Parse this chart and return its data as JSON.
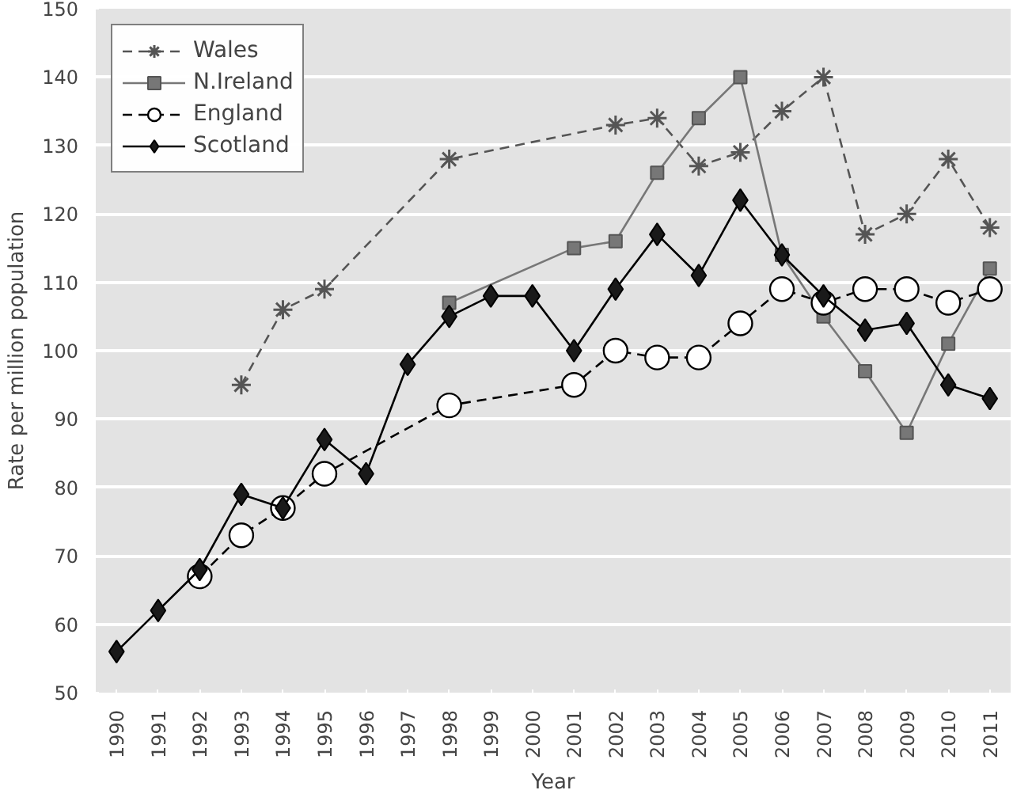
{
  "chart_data": {
    "type": "line",
    "xlabel": "Year",
    "ylabel": "Rate per million population",
    "categories": [
      "1990",
      "1991",
      "1992",
      "1993",
      "1994",
      "1995",
      "1996",
      "1997",
      "1998",
      "1999",
      "2000",
      "2001",
      "2002",
      "2003",
      "2004",
      "2005",
      "2006",
      "2007",
      "2008",
      "2009",
      "2010",
      "2011"
    ],
    "ylim": [
      50,
      150
    ],
    "yticks": [
      50,
      60,
      70,
      80,
      90,
      100,
      110,
      120,
      130,
      140,
      150
    ],
    "grid": "y",
    "legend": "top left",
    "series": [
      {
        "name": "Wales",
        "color": "#555555",
        "marker": "cross",
        "line_style": "dashed",
        "values": [
          null,
          null,
          null,
          95,
          106,
          109,
          null,
          null,
          128,
          null,
          null,
          null,
          133,
          134,
          127,
          129,
          135,
          140,
          117,
          120,
          128,
          118
        ]
      },
      {
        "name": "N.Ireland",
        "color": "#777777",
        "marker": "square",
        "line_style": "solid",
        "values": [
          null,
          null,
          null,
          null,
          null,
          null,
          null,
          null,
          107,
          null,
          null,
          115,
          116,
          126,
          134,
          140,
          114,
          105,
          97,
          88,
          101,
          112
        ]
      },
      {
        "name": "England",
        "color": "#000000",
        "marker": "circle",
        "line_style": "dashed",
        "values": [
          null,
          null,
          67,
          73,
          77,
          82,
          null,
          null,
          92,
          null,
          null,
          95,
          100,
          99,
          99,
          104,
          109,
          107,
          109,
          109,
          107,
          109
        ]
      },
      {
        "name": "Scotland",
        "color": "#000000",
        "marker": "diamond",
        "line_style": "solid",
        "values": [
          56,
          62,
          68,
          79,
          77,
          87,
          82,
          98,
          105,
          108,
          108,
          100,
          109,
          117,
          111,
          122,
          114,
          108,
          103,
          104,
          95,
          93
        ]
      }
    ]
  }
}
